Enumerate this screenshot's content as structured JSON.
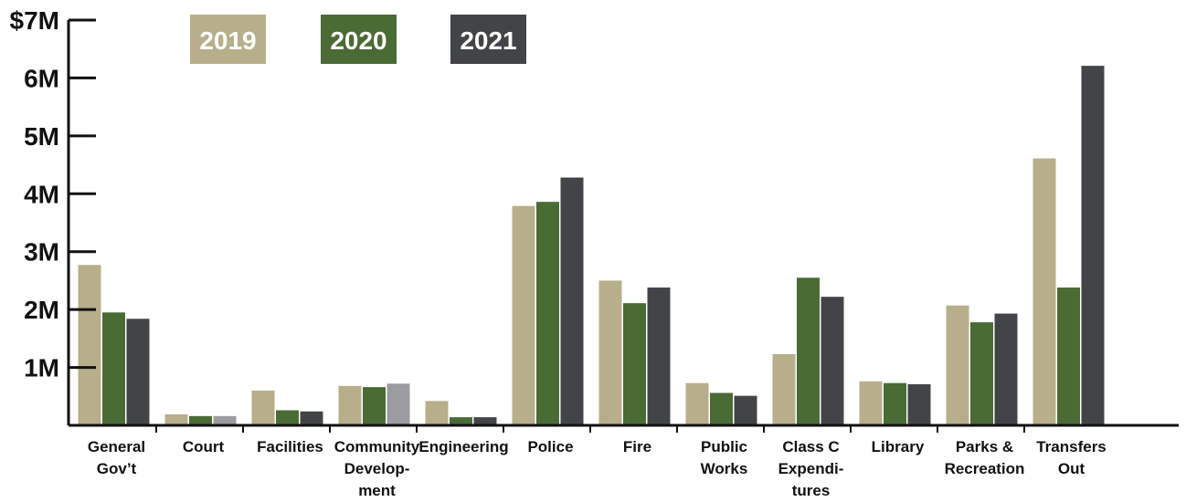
{
  "chart_data": {
    "type": "bar",
    "title": "",
    "xlabel": "",
    "ylabel": "",
    "ylim": [
      0,
      7
    ],
    "y_ticks": [
      "",
      "1M",
      "2M",
      "3M",
      "4M",
      "5M",
      "6M",
      "$7M"
    ],
    "grid": false,
    "legend_position": "top-left",
    "categories": [
      [
        "General",
        "Gov’t"
      ],
      [
        "Court"
      ],
      [
        "Facilities"
      ],
      [
        "Community",
        "Develop-",
        "ment"
      ],
      [
        "Engineering"
      ],
      [
        "Police"
      ],
      [
        "Fire"
      ],
      [
        "Public",
        "Works"
      ],
      [
        "Class C",
        "Expendi-",
        "tures"
      ],
      [
        "Library"
      ],
      [
        "Parks &",
        "Recreation"
      ],
      [
        "Transfers",
        "Out"
      ]
    ],
    "series": [
      {
        "name": "2019",
        "color": "#b7af8a",
        "values": [
          2.77,
          0.19,
          0.6,
          0.68,
          0.42,
          3.79,
          2.5,
          0.73,
          1.23,
          0.76,
          2.07,
          4.61
        ]
      },
      {
        "name": "2020",
        "color": "#4a6b34",
        "values": [
          1.95,
          0.16,
          0.26,
          0.66,
          0.14,
          3.86,
          2.11,
          0.56,
          2.55,
          0.73,
          1.78,
          2.38
        ]
      },
      {
        "name": "2021",
        "color": "#434446",
        "values": [
          1.84,
          0.16,
          0.24,
          0.72,
          0.14,
          4.28,
          2.38,
          0.51,
          2.22,
          0.71,
          1.93,
          6.21
        ]
      }
    ],
    "highlight_color": "#9b9c9f",
    "highlighted_bars": [
      {
        "series": 2,
        "category": 1
      },
      {
        "series": 2,
        "category": 3
      }
    ]
  }
}
